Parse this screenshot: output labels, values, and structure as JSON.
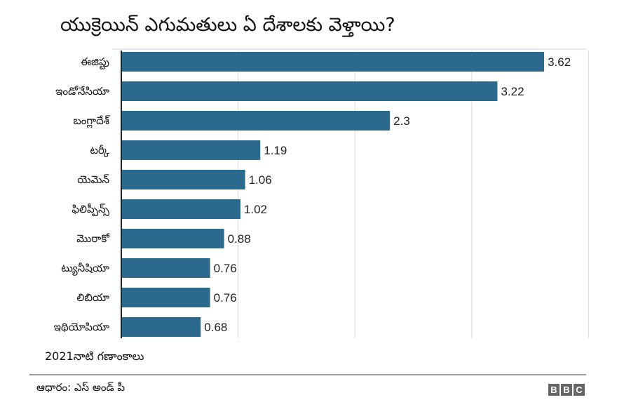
{
  "chart_data": {
    "type": "bar",
    "orientation": "horizontal",
    "title": "యుక్రెయిన్ ఎగుమతులు ఏ దేశాలకు వెళ్తాయి?",
    "categories": [
      "ఈజిప్టు",
      "ఇండోనేసియా",
      "బంగ్లాదేశ్",
      "టర్కీ",
      "యెమెన్",
      "ఫిలిప్పీన్స్",
      "మొరాకో",
      "ట్యునీషియా",
      "లిబియా",
      "ఇథియోపియా"
    ],
    "values": [
      3.62,
      3.22,
      2.3,
      1.19,
      1.06,
      1.02,
      0.88,
      0.76,
      0.76,
      0.68
    ],
    "data_labels": [
      "3.62",
      "3.22",
      "2.3",
      "1.19",
      "1.06",
      "1.02",
      "0.88",
      "0.76",
      "0.76",
      "0.68"
    ],
    "xlim": [
      0,
      4
    ],
    "grid": true,
    "bar_color": "#2b6a8c"
  },
  "note": "2021నాటి గణాంకాలు",
  "source": "ఆధారం: ఎస్ అండ్ పీ",
  "logo": "BBC"
}
